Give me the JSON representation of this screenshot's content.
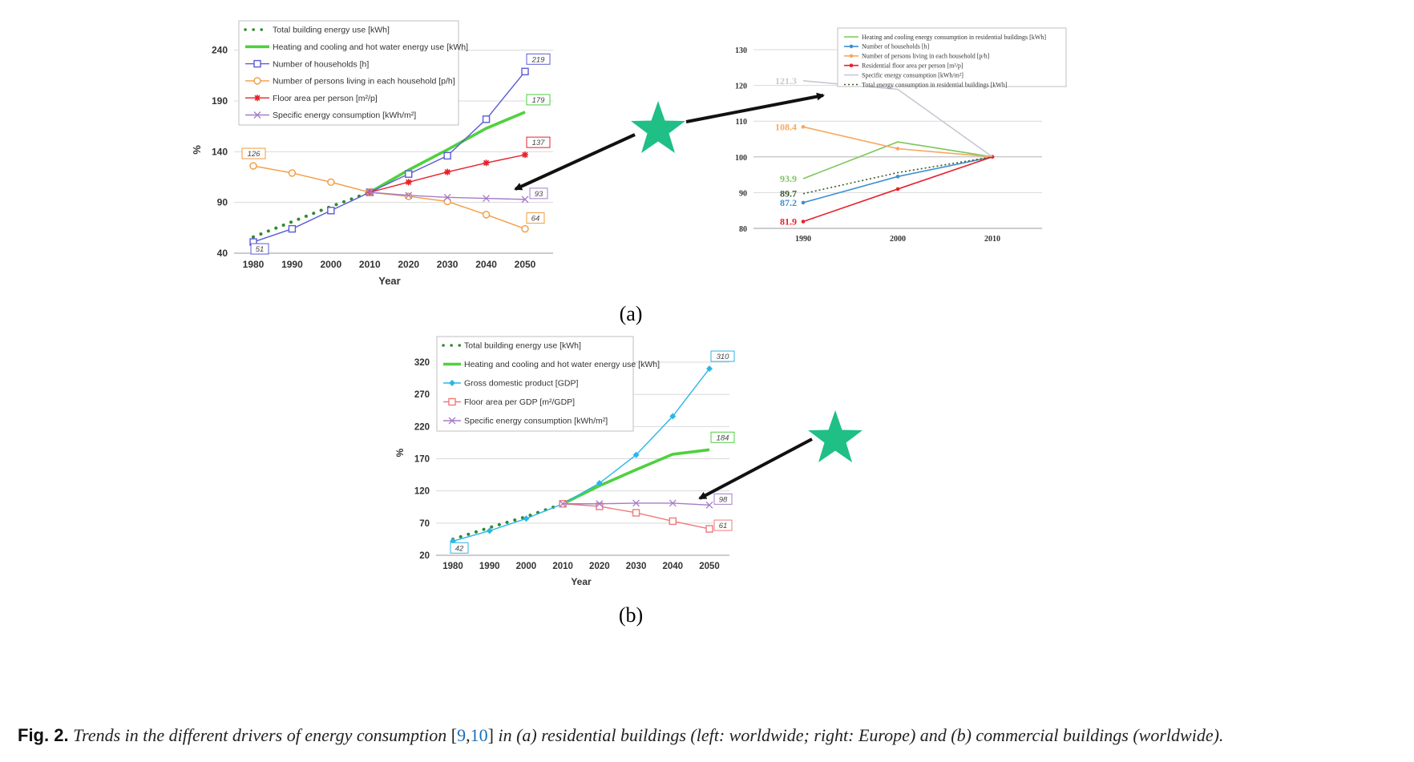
{
  "chart_data": [
    {
      "id": "a-left",
      "type": "line",
      "title": "",
      "xlabel": "Year",
      "ylabel": "%",
      "x": [
        1980,
        1990,
        2000,
        2010,
        2020,
        2030,
        2040,
        2050
      ],
      "x_ticks": [
        "1980",
        "1990",
        "2000",
        "2010",
        "2020",
        "2030",
        "2040",
        "2050"
      ],
      "y_ticks": [
        "40",
        "90",
        "140",
        "190",
        "240"
      ],
      "ylim": [
        40,
        250
      ],
      "grid": "horizontal",
      "legend_position": "top-left",
      "series": [
        {
          "name": "Total building energy use  [kWh]",
          "color": "#2e8b2e",
          "style": "dotted",
          "x": [
            1980,
            1990,
            2000,
            2010
          ],
          "values": [
            56,
            71,
            86,
            100
          ]
        },
        {
          "name": "Heating and cooling and hot water energy use  [kWh]",
          "color": "#4fd13f",
          "style": "thick",
          "x": [
            2010,
            2020,
            2030,
            2040,
            2050
          ],
          "values": [
            100,
            122,
            142,
            163,
            179
          ],
          "end_label": "179"
        },
        {
          "name": "Number of households  [h]",
          "color": "#5b5bd6",
          "marker": "square",
          "x": [
            1980,
            1990,
            2000,
            2010,
            2020,
            2030,
            2040,
            2050
          ],
          "values": [
            51,
            64,
            82,
            100,
            118,
            136,
            172,
            219
          ],
          "start_label": "51",
          "end_label": "219"
        },
        {
          "name": "Number of persons living in each household  [p/h]",
          "color": "#f39a3d",
          "marker": "circle",
          "x": [
            1980,
            1990,
            2000,
            2010,
            2020,
            2030,
            2040,
            2050
          ],
          "values": [
            126,
            119,
            110,
            100,
            96,
            91,
            78,
            64
          ],
          "start_label": "126",
          "end_label": "64"
        },
        {
          "name": "Floor area per person  [m²/p]",
          "color": "#e8202a",
          "marker": "star",
          "x": [
            2010,
            2020,
            2030,
            2040,
            2050
          ],
          "values": [
            100,
            110,
            120,
            129,
            137
          ],
          "end_label": "137"
        },
        {
          "name": "Specific energy consumption  [kWh/m²]",
          "color": "#a57cc7",
          "marker": "x",
          "x": [
            2010,
            2020,
            2030,
            2040,
            2050
          ],
          "values": [
            100,
            97,
            95,
            94,
            93
          ],
          "end_label": "93"
        }
      ]
    },
    {
      "id": "a-right",
      "type": "line",
      "title": "",
      "xlabel": "",
      "ylabel": "",
      "x": [
        1990,
        2000,
        2010
      ],
      "x_ticks": [
        "1990",
        "2000",
        "2010"
      ],
      "y_ticks": [
        "80",
        "90",
        "100",
        "110",
        "120",
        "130"
      ],
      "ylim": [
        80,
        130
      ],
      "legend_position": "top",
      "series": [
        {
          "name": "Heating and cooling energy consumption in residential buildings [kWh]",
          "color": "#7bc75a",
          "values": [
            93.9,
            104.2,
            100
          ],
          "start_label": "93.9"
        },
        {
          "name": "Number of households [h]",
          "color": "#3f8fd0",
          "marker": "dot",
          "values": [
            87.2,
            94.5,
            100
          ],
          "start_label": "87.2"
        },
        {
          "name": "Number of persons living in each household [p/h]",
          "color": "#f7a860",
          "marker": "dot",
          "values": [
            108.4,
            102.3,
            100
          ],
          "start_label": "108.4"
        },
        {
          "name": "Residential floor area per person [m²/p]",
          "color": "#e8202a",
          "marker": "dot",
          "values": [
            81.9,
            91.0,
            100
          ],
          "start_label": "81.9"
        },
        {
          "name": "Specific energy consumption [kWh/m²]",
          "color": "#c8c8d4",
          "values": [
            121.3,
            118.9,
            100
          ],
          "start_label": "121.3"
        },
        {
          "name": "Total energy consumption in residential buildings [kWh]",
          "color": "#3a5a2a",
          "style": "dotted",
          "values": [
            89.7,
            95.6,
            100
          ],
          "start_label": "89.7"
        }
      ]
    },
    {
      "id": "b",
      "type": "line",
      "title": "",
      "xlabel": "Year",
      "ylabel": "%",
      "x": [
        1980,
        1990,
        2000,
        2010,
        2020,
        2030,
        2040,
        2050
      ],
      "x_ticks": [
        "1980",
        "1990",
        "2000",
        "2010",
        "2020",
        "2030",
        "2040",
        "2050"
      ],
      "y_ticks": [
        "20",
        "70",
        "120",
        "170",
        "220",
        "270",
        "320"
      ],
      "ylim": [
        20,
        335
      ],
      "grid": "horizontal",
      "legend_position": "top-left",
      "series": [
        {
          "name": "Total building energy use  [kWh]",
          "color": "#2e8b2e",
          "style": "dotted",
          "x": [
            1980,
            1990,
            2000,
            2010
          ],
          "values": [
            45,
            63,
            80,
            100
          ]
        },
        {
          "name": "Heating and cooling and hot water energy use  [kWh]",
          "color": "#4fd13f",
          "style": "thick",
          "x": [
            2010,
            2020,
            2030,
            2040,
            2050
          ],
          "values": [
            100,
            128,
            153,
            177,
            184
          ],
          "end_label": "184"
        },
        {
          "name": "Gross domestic product  [GDP]",
          "color": "#2bb6e8",
          "marker": "diamond",
          "x": [
            1980,
            1990,
            2000,
            2010,
            2020,
            2030,
            2040,
            2050
          ],
          "values": [
            42,
            58,
            77,
            100,
            132,
            176,
            236,
            310
          ],
          "start_label": "42",
          "end_label": "310"
        },
        {
          "name": "Floor area per GDP  [m²/GDP]",
          "color": "#f07a7a",
          "marker": "square",
          "x": [
            2010,
            2020,
            2030,
            2040,
            2050
          ],
          "values": [
            100,
            96,
            86,
            73,
            61
          ],
          "end_label": "61"
        },
        {
          "name": "Specific energy consumption  [kWh/m²]",
          "color": "#a57cc7",
          "marker": "x",
          "x": [
            2010,
            2020,
            2030,
            2040,
            2050
          ],
          "values": [
            100,
            100,
            101,
            101,
            98
          ],
          "end_label": "98"
        }
      ]
    }
  ],
  "panels": {
    "a_label": "(a)",
    "b_label": "(b)"
  },
  "caption": {
    "fig": "Fig. 2.",
    "text1": "Trends in the different drivers of energy consumption ",
    "bracket_open": "[",
    "ref1": "9",
    "comma": ",",
    "ref2": "10",
    "bracket_close": "]",
    "text2": " in (a) residential buildings (left: worldwide; right: Europe) and (b) commercial buildings (worldwide)."
  },
  "colors": {
    "star": "#1fbf86",
    "arrow": "#111111"
  }
}
